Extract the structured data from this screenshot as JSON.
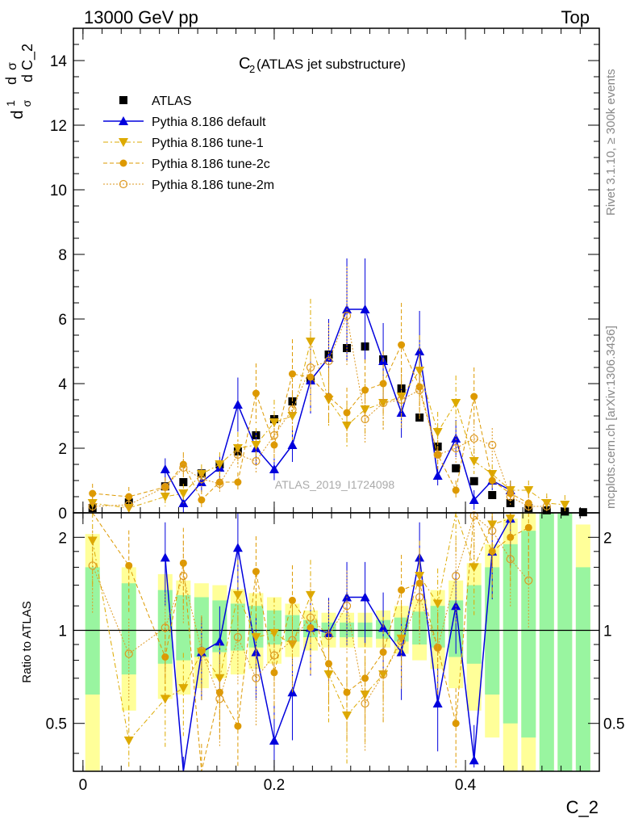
{
  "header": {
    "left": "13000 GeV pp",
    "right": "Top"
  },
  "top_panel": {
    "title_main": "C",
    "title_sub": "2",
    "title_rest": " (ATLAS jet substructure)",
    "ylabel_parts": [
      "d",
      "1",
      "σ",
      "d",
      "σ",
      "d C_2"
    ],
    "watermark": "ATLAS_2019_I1724098",
    "ytick_labels": [
      "0",
      "2",
      "4",
      "6",
      "8",
      "10",
      "12",
      "14"
    ]
  },
  "side_labels": {
    "rivet": "Rivet 3.1.10, ≥ 300k events",
    "mcplots": "mcplots.cern.ch [arXiv:1306.3436]"
  },
  "bottom_panel": {
    "ylabel": "Ratio to ATLAS",
    "ytick_labels": [
      "0.5",
      "1",
      "2"
    ]
  },
  "xaxis": {
    "label": "C_2",
    "tick_labels": [
      "0",
      "0.2",
      "0.4"
    ]
  },
  "legend": [
    {
      "label": "ATLAS",
      "color": "#000000",
      "marker": "square",
      "line": "none"
    },
    {
      "label": "Pythia 8.186 default",
      "color": "#0000dd",
      "marker": "triangle-up",
      "line": "solid"
    },
    {
      "label": "Pythia 8.186 tune-1",
      "color": "#ddaa00",
      "marker": "triangle-down",
      "line": "dashdot"
    },
    {
      "label": "Pythia 8.186 tune-2c",
      "color": "#dd9900",
      "marker": "circle",
      "line": "dashed"
    },
    {
      "label": "Pythia 8.186 tune-2m",
      "color": "#dd9922",
      "marker": "open-circle",
      "line": "dotted"
    }
  ],
  "chart_data": {
    "type": "scatter",
    "title": "C_2 (ATLAS jet substructure)",
    "xlabel": "C_2",
    "ylabel": "1/σ dσ/dC_2",
    "xlim": [
      -0.01,
      0.54
    ],
    "ylim": [
      0,
      15
    ],
    "ratio_ylim": [
      0.35,
      2.4
    ],
    "ratio_ylabel": "Ratio to ATLAS",
    "ratio_scale": "log",
    "x": [
      0.01,
      0.048,
      0.086,
      0.105,
      0.124,
      0.143,
      0.162,
      0.181,
      0.2,
      0.219,
      0.238,
      0.257,
      0.276,
      0.295,
      0.314,
      0.333,
      0.352,
      0.371,
      0.39,
      0.409,
      0.428,
      0.447,
      0.466,
      0.485,
      0.504,
      0.523
    ],
    "series": [
      {
        "name": "ATLAS",
        "values": [
          0.15,
          0.32,
          0.82,
          0.95,
          1.22,
          1.5,
          1.9,
          2.4,
          2.9,
          3.45,
          4.1,
          4.9,
          5.1,
          5.15,
          4.75,
          3.85,
          2.95,
          2.05,
          1.38,
          0.98,
          0.55,
          0.3,
          0.15,
          0.08,
          0.04,
          0.02
        ]
      },
      {
        "name": "Pythia 8.186 default",
        "values": [
          null,
          null,
          1.35,
          0.3,
          0.95,
          1.4,
          3.35,
          2.0,
          1.35,
          2.1,
          4.1,
          4.8,
          6.3,
          6.3,
          4.7,
          3.1,
          5.0,
          1.15,
          2.3,
          0.4,
          1.0,
          0.7,
          null,
          null,
          null,
          null
        ],
        "ratio": [
          null,
          null,
          1.72,
          0.3,
          0.85,
          0.92,
          1.85,
          0.85,
          0.44,
          0.63,
          1.02,
          0.98,
          1.28,
          1.28,
          1.02,
          0.85,
          1.72,
          0.58,
          1.2,
          0.38,
          1.8,
          2.3,
          null,
          null,
          null,
          null
        ]
      },
      {
        "name": "Pythia 8.186 tune-1",
        "values": [
          0.3,
          0.15,
          0.5,
          0.6,
          1.2,
          1.5,
          2.0,
          2.1,
          2.8,
          3.0,
          5.3,
          3.5,
          2.7,
          3.2,
          3.4,
          3.6,
          4.4,
          2.5,
          3.4,
          1.6,
          1.2,
          0.7,
          0.7,
          0.3,
          0.25,
          null
        ],
        "ratio": [
          1.95,
          0.44,
          0.6,
          0.65,
          0.85,
          0.7,
          1.3,
          0.95,
          0.98,
          0.9,
          1.3,
          0.72,
          0.53,
          0.62,
          0.72,
          0.94,
          1.5,
          1.22,
          2.45,
          1.6,
          2.2,
          2.3,
          null,
          null,
          null,
          null
        ]
      },
      {
        "name": "Pythia 8.186 tune-2c",
        "values": [
          0.6,
          0.5,
          0.8,
          1.5,
          0.4,
          0.95,
          0.95,
          3.7,
          2.1,
          4.3,
          4.2,
          3.6,
          3.1,
          3.8,
          4.0,
          5.2,
          3.9,
          1.8,
          0.7,
          3.6,
          1.0,
          0.6,
          0.3,
          null,
          null,
          null
        ],
        "ratio": [
          4.0,
          1.62,
          0.82,
          1.65,
          0.33,
          0.63,
          0.49,
          1.55,
          0.73,
          1.25,
          1.02,
          0.78,
          0.63,
          0.7,
          0.85,
          1.35,
          1.42,
          0.88,
          0.5,
          3.6,
          1.8,
          2.0,
          2.15,
          null,
          null,
          null
        ]
      },
      {
        "name": "Pythia 8.186 tune-2m",
        "values": [
          0.2,
          0.25,
          0.8,
          1.4,
          1.05,
          0.9,
          1.8,
          1.6,
          2.4,
          3.2,
          4.5,
          4.7,
          6.1,
          2.9,
          3.4,
          3.5,
          3.8,
          1.8,
          2.0,
          2.3,
          2.1,
          0.5,
          0.2,
          0.2,
          null,
          null
        ],
        "ratio": [
          1.62,
          0.84,
          1.02,
          1.5,
          0.86,
          0.6,
          0.95,
          0.7,
          0.83,
          0.93,
          1.1,
          0.96,
          1.2,
          0.58,
          0.72,
          0.92,
          1.28,
          0.88,
          1.5,
          2.35,
          2.1,
          1.7,
          1.45,
          null,
          null,
          null
        ]
      }
    ],
    "ratio_band_inner": {
      "lo": [
        0.62,
        0.72,
        0.78,
        0.8,
        0.82,
        0.85,
        0.86,
        0.88,
        0.9,
        0.92,
        0.95,
        0.95,
        0.95,
        0.95,
        0.94,
        0.92,
        0.9,
        0.88,
        0.82,
        0.78,
        0.62,
        0.5,
        0.45,
        0.3,
        0.3,
        0.35
      ],
      "hi": [
        1.6,
        1.42,
        1.35,
        1.3,
        1.28,
        1.25,
        1.22,
        1.2,
        1.16,
        1.12,
        1.08,
        1.06,
        1.06,
        1.06,
        1.08,
        1.1,
        1.15,
        1.2,
        1.25,
        1.4,
        1.6,
        1.9,
        2.1,
        2.5,
        2.5,
        1.6
      ]
    },
    "ratio_band_outer": {
      "lo": [
        0.3,
        0.55,
        0.6,
        0.62,
        0.65,
        0.7,
        0.72,
        0.75,
        0.78,
        0.82,
        0.86,
        0.88,
        0.88,
        0.88,
        0.88,
        0.84,
        0.8,
        0.75,
        0.65,
        0.55,
        0.45,
        0.35,
        0.3,
        0.25,
        0.25,
        0.25
      ],
      "hi": [
        2.05,
        1.6,
        1.52,
        1.45,
        1.42,
        1.4,
        1.36,
        1.32,
        1.28,
        1.22,
        1.16,
        1.14,
        1.14,
        1.14,
        1.16,
        1.2,
        1.26,
        1.35,
        1.45,
        1.65,
        1.9,
        2.3,
        2.6,
        3.0,
        3.0,
        2.2
      ]
    },
    "grid": false,
    "legend_position": "top-left"
  }
}
